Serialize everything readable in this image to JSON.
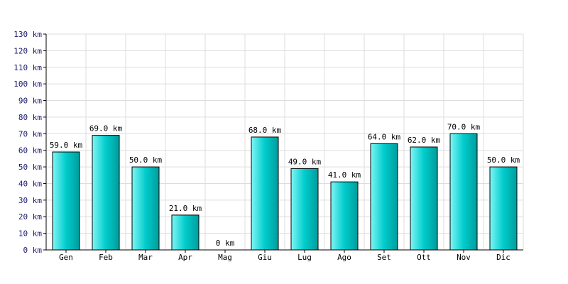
{
  "chart_data": {
    "type": "bar",
    "categories": [
      "Gen",
      "Feb",
      "Mar",
      "Apr",
      "Mag",
      "Giu",
      "Lug",
      "Ago",
      "Set",
      "Ott",
      "Nov",
      "Dic"
    ],
    "values": [
      59.0,
      69.0,
      50.0,
      21.0,
      0,
      68.0,
      49.0,
      41.0,
      64.0,
      62.0,
      70.0,
      50.0
    ],
    "data_labels": [
      "59.0 km",
      "69.0 km",
      "50.0 km",
      "21.0 km",
      "0 km",
      "68.0 km",
      "49.0 km",
      "41.0 km",
      "64.0 km",
      "62.0 km",
      "70.0 km",
      "50.0 km"
    ],
    "yticks": [
      "0 km",
      "10 km",
      "20 km",
      "30 km",
      "40 km",
      "50 km",
      "60 km",
      "70 km",
      "80 km",
      "90 km",
      "100 km",
      "110 km",
      "120 km",
      "130 km"
    ],
    "ylim": [
      0,
      130
    ],
    "ystep": 10,
    "grid": true,
    "colors": {
      "bar_light": "#7ff5f5",
      "bar_main": "#00cccc",
      "bar_dark": "#009c9c",
      "bar_edge": "#000000",
      "grid": "#dddddd",
      "axis": "#000000",
      "ytick_text": "#1a1a6e"
    }
  }
}
